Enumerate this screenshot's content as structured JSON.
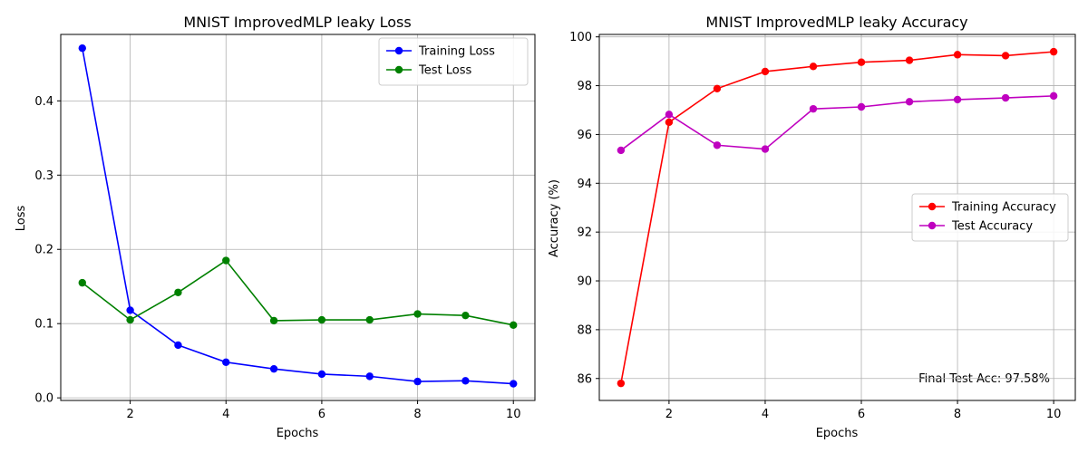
{
  "chart_data": [
    {
      "type": "line",
      "title": "MNIST ImprovedMLP leaky Loss",
      "xlabel": "Epochs",
      "ylabel": "Loss",
      "xlim": [
        0.55,
        10.45
      ],
      "ylim": [
        -0.0035,
        0.4895
      ],
      "xticks": [
        2,
        4,
        6,
        8,
        10
      ],
      "yticks": [
        0.0,
        0.1,
        0.2,
        0.3,
        0.4
      ],
      "ytick_labels": [
        "0.0",
        "0.1",
        "0.2",
        "0.3",
        "0.4"
      ],
      "grid": true,
      "legend_position": "top-right",
      "x": [
        1,
        2,
        3,
        4,
        5,
        6,
        7,
        8,
        9,
        10
      ],
      "series": [
        {
          "name": "Training Loss",
          "color": "#0000ff",
          "values": [
            0.471,
            0.118,
            0.071,
            0.048,
            0.039,
            0.032,
            0.029,
            0.022,
            0.023,
            0.019
          ]
        },
        {
          "name": "Test Loss",
          "color": "#008000",
          "values": [
            0.155,
            0.105,
            0.142,
            0.185,
            0.104,
            0.105,
            0.105,
            0.113,
            0.111,
            0.098
          ]
        }
      ]
    },
    {
      "type": "line",
      "title": "MNIST ImprovedMLP leaky Accuracy",
      "xlabel": "Epochs",
      "ylabel": "Accuracy (%)",
      "xlim": [
        0.55,
        10.45
      ],
      "ylim": [
        85.1,
        100.1
      ],
      "xticks": [
        2,
        4,
        6,
        8,
        10
      ],
      "yticks": [
        86,
        88,
        90,
        92,
        94,
        96,
        98,
        100
      ],
      "ytick_labels": [
        "86",
        "88",
        "90",
        "92",
        "94",
        "96",
        "98",
        "100"
      ],
      "grid": true,
      "legend_position": "center-right",
      "annotation": "Final Test Acc: 97.58%",
      "x": [
        1,
        2,
        3,
        4,
        5,
        6,
        7,
        8,
        9,
        10
      ],
      "series": [
        {
          "name": "Training Accuracy",
          "color": "#ff0000",
          "values": [
            85.8,
            96.5,
            97.88,
            98.58,
            98.79,
            98.96,
            99.04,
            99.27,
            99.23,
            99.39
          ]
        },
        {
          "name": "Test Accuracy",
          "color": "#bf00bf",
          "values": [
            95.35,
            96.82,
            95.56,
            95.4,
            97.05,
            97.13,
            97.34,
            97.43,
            97.5,
            97.58
          ]
        }
      ]
    }
  ]
}
